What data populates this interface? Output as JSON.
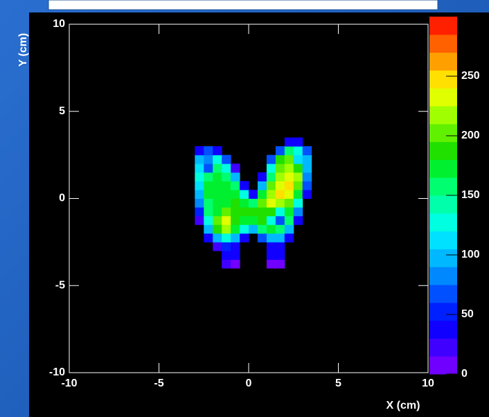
{
  "chart_data": {
    "type": "heatmap",
    "xlabel": "X (cm)",
    "ylabel": "Y (cm)",
    "xlim": [
      -10,
      10
    ],
    "xticks": [
      -10,
      -5,
      0,
      5,
      10
    ],
    "ylim": [
      -10,
      10
    ],
    "yticks": [
      -10,
      -5,
      0,
      5,
      10
    ],
    "zlim": [
      0,
      300
    ],
    "zticks": [
      0,
      50,
      100,
      150,
      200,
      250
    ],
    "palette": [
      "#7000ff",
      "#4000ff",
      "#1000ff",
      "#0020ff",
      "#0050ff",
      "#0088ff",
      "#00b8ff",
      "#00e0ff",
      "#00ffe0",
      "#00ffaa",
      "#00ff70",
      "#00f030",
      "#20e000",
      "#60f000",
      "#a0ff00",
      "#e0ff00",
      "#ffe000",
      "#ffa000",
      "#ff6000",
      "#ff2000"
    ],
    "x_bins": [
      -3.5,
      -3,
      -2.5,
      -2,
      -1.5,
      -1,
      -0.5,
      0,
      0.5,
      1,
      1.5,
      2,
      2.5,
      3,
      3.5
    ],
    "y_bins": [
      -4,
      -3.5,
      -3,
      -2.5,
      -2,
      -1.5,
      -1,
      -0.5,
      0,
      0.5,
      1,
      1.5,
      2,
      2.5,
      3,
      3.5
    ],
    "z": [
      [
        0,
        0,
        0,
        0,
        20,
        10,
        0,
        0,
        0,
        10,
        10,
        0,
        0,
        0
      ],
      [
        0,
        0,
        0,
        0,
        40,
        30,
        0,
        0,
        0,
        40,
        40,
        0,
        0,
        0
      ],
      [
        0,
        0,
        0,
        20,
        50,
        30,
        0,
        0,
        0,
        40,
        40,
        0,
        0,
        0
      ],
      [
        0,
        0,
        40,
        100,
        120,
        100,
        40,
        0,
        60,
        100,
        90,
        30,
        0,
        0
      ],
      [
        0,
        0,
        100,
        190,
        220,
        170,
        120,
        100,
        150,
        170,
        150,
        100,
        0,
        0
      ],
      [
        0,
        20,
        130,
        200,
        230,
        180,
        170,
        170,
        190,
        120,
        60,
        150,
        40,
        0
      ],
      [
        0,
        50,
        150,
        170,
        200,
        180,
        180,
        180,
        190,
        180,
        120,
        170,
        80,
        0
      ],
      [
        0,
        80,
        160,
        170,
        170,
        180,
        170,
        160,
        200,
        230,
        220,
        200,
        120,
        0
      ],
      [
        0,
        100,
        170,
        170,
        170,
        170,
        120,
        40,
        170,
        220,
        240,
        230,
        170,
        30
      ],
      [
        0,
        110,
        170,
        170,
        170,
        150,
        40,
        0,
        90,
        200,
        230,
        240,
        200,
        60
      ],
      [
        0,
        120,
        160,
        170,
        160,
        100,
        0,
        0,
        30,
        160,
        220,
        230,
        210,
        80
      ],
      [
        0,
        110,
        70,
        150,
        120,
        20,
        0,
        0,
        0,
        120,
        200,
        210,
        190,
        90
      ],
      [
        0,
        90,
        80,
        120,
        60,
        0,
        0,
        0,
        0,
        60,
        180,
        200,
        110,
        90
      ],
      [
        0,
        40,
        60,
        40,
        0,
        0,
        0,
        0,
        0,
        0,
        60,
        160,
        120,
        60
      ],
      [
        0,
        0,
        0,
        0,
        0,
        0,
        0,
        0,
        0,
        0,
        0,
        30,
        30,
        0
      ]
    ]
  }
}
